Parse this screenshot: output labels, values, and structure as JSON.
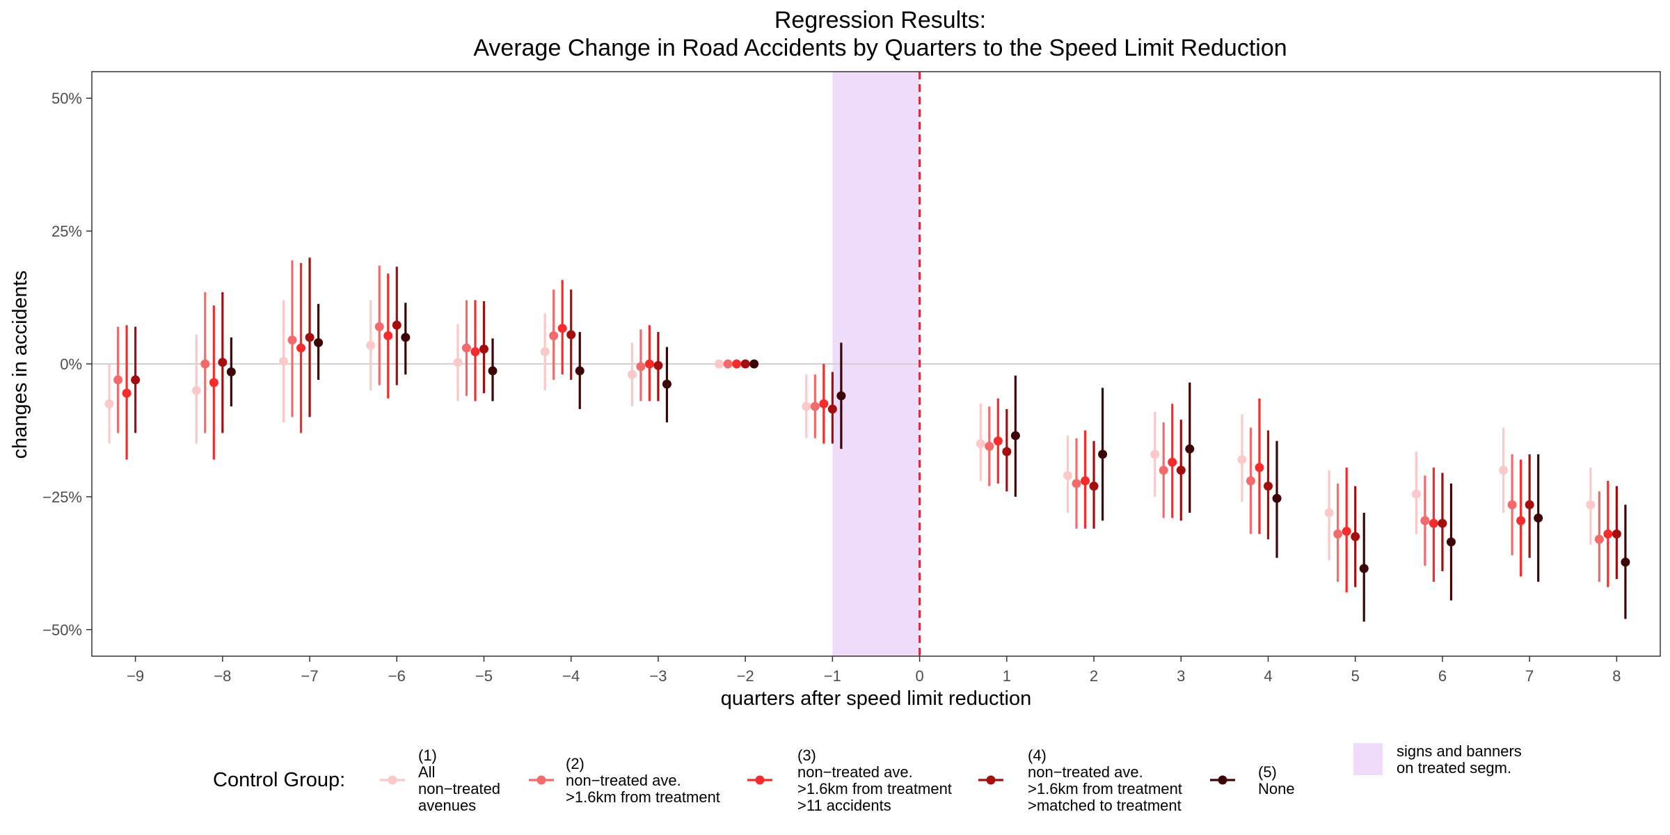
{
  "chart_data": {
    "type": "scatter",
    "variant": "point-range (coefficient with confidence interval) by group",
    "title_lines": [
      "Regression Results:",
      "Average Change in Road Accidents by Quarters to the Speed Limit Reduction"
    ],
    "xlabel": "quarters after speed limit reduction",
    "ylabel": "changes in accidents",
    "xlim": [
      -9.5,
      8.5
    ],
    "ylim": [
      -55,
      55
    ],
    "x_ticks": [
      -9,
      -8,
      -7,
      -6,
      -5,
      -4,
      -3,
      -2,
      -1,
      0,
      1,
      2,
      3,
      4,
      5,
      6,
      7,
      8
    ],
    "y_ticks": [
      50,
      25,
      0,
      -25,
      -50
    ],
    "y_tick_labels": [
      "50%",
      "25%",
      "0%",
      "−25%",
      "−50%"
    ],
    "grid": false,
    "reference_line_y": 0,
    "vertical_dashed_line_x": 0,
    "shaded_region": {
      "x": [
        -1,
        0
      ],
      "color": "#efdcfb",
      "label": "signs and banners on treated segm."
    },
    "x_labels": [
      "−9",
      "−8",
      "−7",
      "−6",
      "−5",
      "−4",
      "−3",
      "−2",
      "−1",
      "0",
      "1",
      "2",
      "3",
      "4",
      "5",
      "6",
      "7",
      "8"
    ],
    "quarters": [
      -9,
      -8,
      -7,
      -6,
      -5,
      -4,
      -3,
      -2,
      -1,
      1,
      2,
      3,
      4,
      5,
      6,
      7,
      8
    ],
    "dodge_offsets": [
      -0.3,
      -0.2,
      -0.1,
      0.0,
      0.1
    ],
    "series": [
      {
        "name": "(1) All non−treated avenues",
        "color": "#fcc8c8",
        "estimate": [
          -7.5,
          -5,
          0.5,
          3.5,
          0.3,
          2.3,
          -2,
          0,
          -8,
          -15,
          -21,
          -17,
          -18,
          -28,
          -24.5,
          -20,
          -26.5
        ],
        "lower": [
          -15,
          -15,
          -11,
          -5,
          -7,
          -5,
          -8,
          0,
          -14,
          -22,
          -28,
          -25,
          -26,
          -37,
          -32,
          -28,
          -34
        ],
        "upper": [
          0,
          5.5,
          12,
          12,
          7.5,
          9.5,
          4,
          0,
          -2,
          -7.5,
          -13.5,
          -9,
          -9.5,
          -20,
          -16.5,
          -12,
          -19.5
        ]
      },
      {
        "name": "(2) non−treated ave. >1.6km from treatment",
        "color": "#f26a6a",
        "estimate": [
          -3,
          0,
          4.5,
          7,
          3,
          5.3,
          -0.5,
          0,
          -8,
          -15.5,
          -22.5,
          -20,
          -22,
          -32,
          -29.5,
          -26.5,
          -33
        ],
        "lower": [
          -13,
          -13,
          -10,
          -4,
          -6,
          -3,
          -7,
          0,
          -14,
          -23,
          -31,
          -29,
          -32,
          -41,
          -38,
          -36,
          -41
        ],
        "upper": [
          7,
          13.5,
          19.5,
          18.5,
          12,
          14,
          6.5,
          0,
          -2,
          -8,
          -14,
          -11,
          -12,
          -22.5,
          -21,
          -17,
          -24
        ]
      },
      {
        "name": "(3) non−treated ave. >1.6km from treatment >11 accidents",
        "color": "#f72b2b",
        "estimate": [
          -5.5,
          -3.5,
          3,
          5.3,
          2.3,
          6.7,
          0,
          0,
          -7.5,
          -14.5,
          -22,
          -18.5,
          -19.5,
          -31.5,
          -30,
          -29.5,
          -32
        ],
        "lower": [
          -18,
          -18,
          -13,
          -6.5,
          -7,
          -2,
          -7,
          0,
          -15,
          -22.5,
          -31,
          -29,
          -32,
          -43,
          -41,
          -40,
          -42
        ],
        "upper": [
          7.3,
          11,
          19,
          17,
          12,
          15.8,
          7.3,
          0,
          0,
          -6.5,
          -12.5,
          -7.5,
          -6.5,
          -19.5,
          -19.5,
          -18,
          -22
        ]
      },
      {
        "name": "(4) non−treated ave. >1.6km from treatment >matched to treatment",
        "color": "#a30f0f",
        "estimate": [
          -3,
          0.3,
          5,
          7.3,
          2.8,
          5.5,
          -0.3,
          0,
          -8.5,
          -16.5,
          -23,
          -20,
          -23,
          -32.5,
          -30,
          -26.5,
          -32
        ],
        "lower": [
          -13,
          -13,
          -10,
          -4,
          -5.5,
          -3,
          -7,
          0,
          -15,
          -24,
          -31,
          -29.5,
          -33,
          -42,
          -39,
          -36.5,
          -40.5
        ],
        "upper": [
          7,
          13.5,
          20,
          18.3,
          11.8,
          14,
          6,
          0,
          -1.5,
          -8.5,
          -14.5,
          -10.5,
          -12.5,
          -23,
          -20.5,
          -17,
          -23
        ]
      },
      {
        "name": "(5) None",
        "color": "#3d0505",
        "estimate": [
          null,
          -1.5,
          4,
          5,
          -1.3,
          -1.3,
          -3.8,
          0,
          -6,
          -13.5,
          -17,
          -16,
          -25.3,
          -38.5,
          -33.5,
          -29,
          -37.3
        ],
        "lower": [
          null,
          -8,
          -3,
          -2,
          -7,
          -8.5,
          -11,
          0,
          -16,
          -25,
          -29.5,
          -28,
          -36.5,
          -48.5,
          -44.5,
          -41,
          -48
        ],
        "upper": [
          null,
          5,
          11.3,
          11.5,
          4.8,
          6,
          3.2,
          0,
          4,
          -2.2,
          -4.5,
          -3.5,
          -14.5,
          -28,
          -22.5,
          -17,
          -26.5
        ]
      }
    ],
    "legend": {
      "title": "Control Group:",
      "position": "bottom",
      "items": [
        {
          "lines": [
            "(1)",
            "All",
            "non−treated",
            "avenues"
          ]
        },
        {
          "lines": [
            "(2)",
            "non−treated ave.",
            ">1.6km from treatment"
          ]
        },
        {
          "lines": [
            "(3)",
            "non−treated ave.",
            ">1.6km from treatment",
            ">11 accidents"
          ]
        },
        {
          "lines": [
            "(4)",
            "non−treated ave.",
            ">1.6km from treatment",
            ">matched to treatment"
          ]
        },
        {
          "lines": [
            "(5)",
            "None"
          ]
        }
      ],
      "shade_lines": [
        "signs and banners",
        "on treated segm."
      ]
    }
  }
}
